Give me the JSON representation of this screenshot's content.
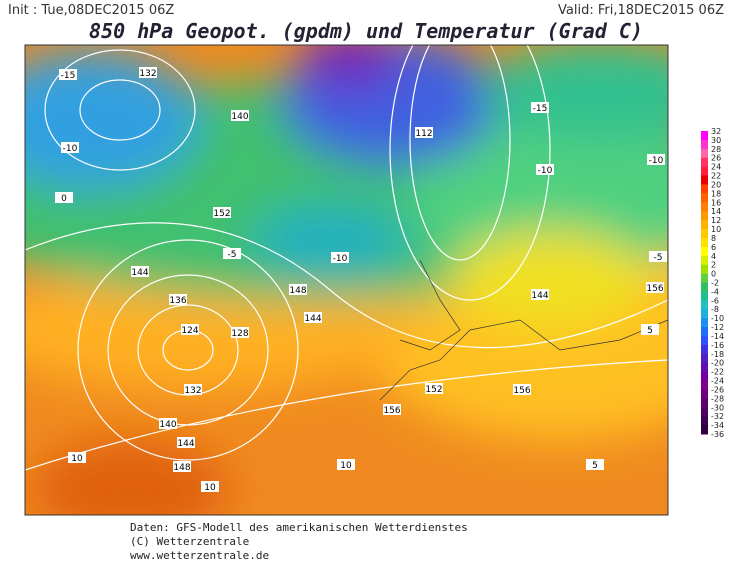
{
  "header": {
    "init": "Init : Tue,08DEC2015 06Z",
    "valid": "Valid: Fri,18DEC2015 06Z",
    "title": "850 hPa Geopot. (gpdm) und Temperatur (Grad C)"
  },
  "map": {
    "labels": [
      132,
      140,
      152,
      144,
      136,
      124,
      128,
      132,
      140,
      144,
      148,
      148,
      144,
      156,
      152,
      156,
      156,
      144,
      112,
      -10,
      -15,
      -10,
      -15,
      -10,
      -5,
      5,
      5,
      10,
      10,
      10,
      -10,
      -5,
      0
    ]
  },
  "colorbar": {
    "labels": [
      32,
      30,
      28,
      26,
      24,
      22,
      20,
      18,
      16,
      14,
      12,
      10,
      8,
      6,
      4,
      2,
      0,
      -2,
      -4,
      -6,
      -8,
      -10,
      -12,
      -14,
      -16,
      -18,
      -20,
      -22,
      -24,
      -26,
      -28,
      -30,
      -32,
      -34,
      -36
    ],
    "colors": [
      "#ff00ff",
      "#ff33cc",
      "#ff66aa",
      "#ff3366",
      "#ff2040",
      "#e80000",
      "#ff4000",
      "#ff6000",
      "#ff8000",
      "#ff9900",
      "#ffb000",
      "#ffc800",
      "#ffe000",
      "#ffff00",
      "#d8f000",
      "#a0e000",
      "#60d040",
      "#30c060",
      "#20c090",
      "#20c0c0",
      "#20b0e0",
      "#2090f0",
      "#2070ff",
      "#3050ff",
      "#4030e0",
      "#5020c0",
      "#6010b0",
      "#7000a0",
      "#800090",
      "#700080",
      "#600070",
      "#500060",
      "#400050",
      "#300040"
    ]
  },
  "footer": {
    "line1": "Daten: GFS-Modell des amerikanischen Wetterdienstes",
    "line2": "(C) Wetterzentrale",
    "line3": "www.wetterzentrale.de"
  }
}
